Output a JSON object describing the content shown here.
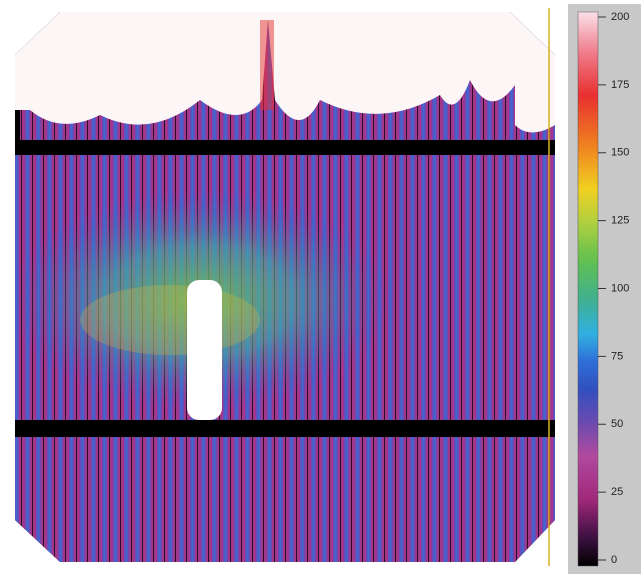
{
  "chart_data": {
    "type": "heatmap",
    "clim": [
      0,
      200
    ],
    "colorbar_ticks": [
      0,
      25,
      50,
      75,
      100,
      125,
      150,
      175,
      200
    ]
  }
}
